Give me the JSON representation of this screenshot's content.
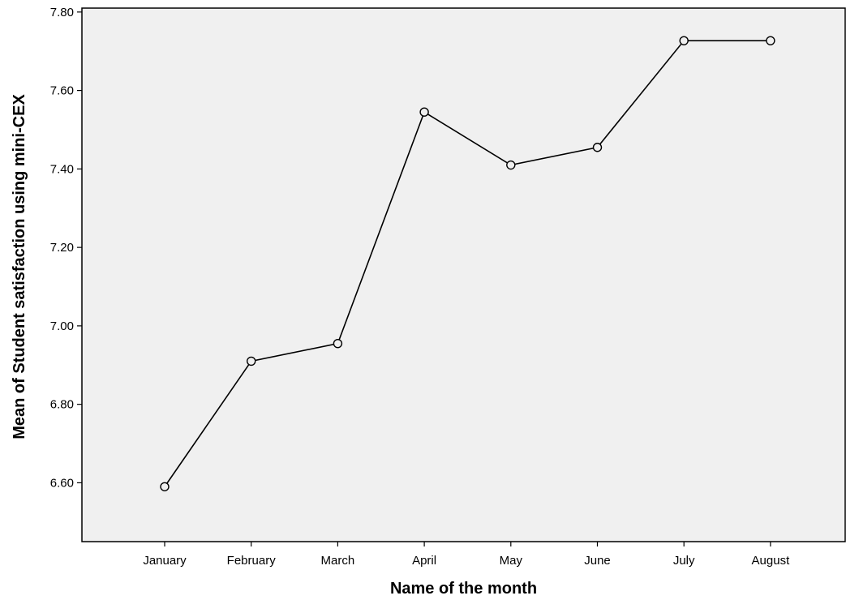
{
  "chart_data": {
    "type": "line",
    "title": "",
    "xlabel": "Name of the month",
    "ylabel": "Mean of Student satisfaction using mini-CEX",
    "categories": [
      "January",
      "February",
      "March",
      "April",
      "May",
      "June",
      "July",
      "August"
    ],
    "values": [
      6.59,
      6.91,
      6.955,
      7.545,
      7.41,
      7.455,
      7.727,
      7.727
    ],
    "ylim": [
      6.45,
      7.81
    ],
    "yticks": [
      "6.60",
      "6.80",
      "7.00",
      "7.20",
      "7.40",
      "7.60",
      "7.80"
    ],
    "grid": false,
    "markers": "open-circle",
    "colors": {
      "plot_background": "#f0f0f0",
      "line": "#000000",
      "frame": "#000000"
    }
  }
}
